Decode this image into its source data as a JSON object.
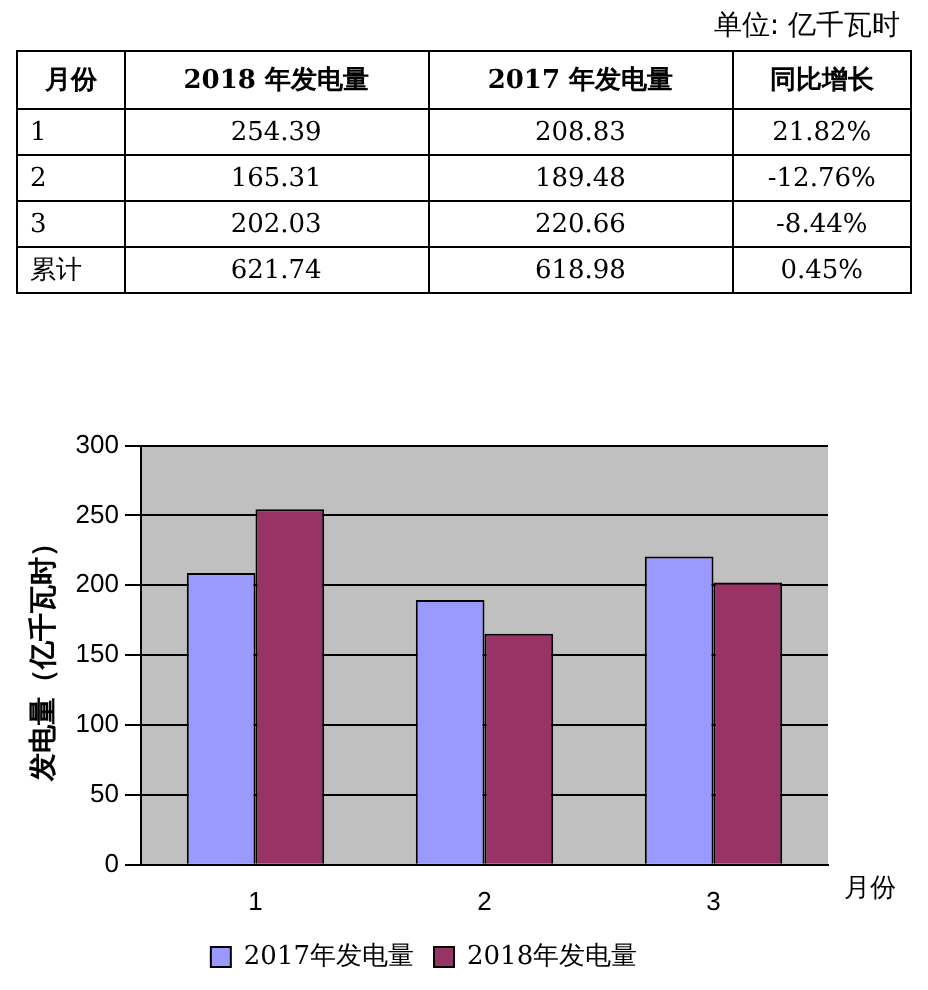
{
  "chart_data": [
    {
      "type": "other",
      "xlabel": "月份",
      "annotations": [
        "单位: 亿千瓦时"
      ],
      "data_labels": true,
      "categories": [
        "1",
        "2",
        "3",
        "累计"
      ],
      "series": [
        {
          "name": "2018 年发电量",
          "values": [
            254.39,
            165.31,
            202.03,
            621.74
          ]
        },
        {
          "name": "2017 年发电量",
          "values": [
            208.83,
            189.48,
            220.66,
            618.98
          ]
        },
        {
          "name": "同比增长",
          "values": [
            21.82,
            -12.76,
            -8.44,
            0.45
          ],
          "value_labels": [
            "21.82%",
            "-12.76%",
            "-8.44%",
            "0.45%"
          ]
        }
      ]
    },
    {
      "type": "bar",
      "xlabel": "月份",
      "ylabel": "发电量（亿千瓦时）",
      "categories": [
        "1",
        "2",
        "3"
      ],
      "ylim": [
        0,
        300
      ],
      "yticks": [
        0,
        50,
        100,
        150,
        200,
        250,
        300
      ],
      "grid": "y",
      "legend": "bottom",
      "series": [
        {
          "name": "2017年发电量",
          "color": "#9999ff",
          "values": [
            208.83,
            189.48,
            220.66
          ]
        },
        {
          "name": "2018年发电量",
          "color": "#993366",
          "values": [
            254.39,
            165.31,
            202.03
          ]
        }
      ]
    }
  ]
}
